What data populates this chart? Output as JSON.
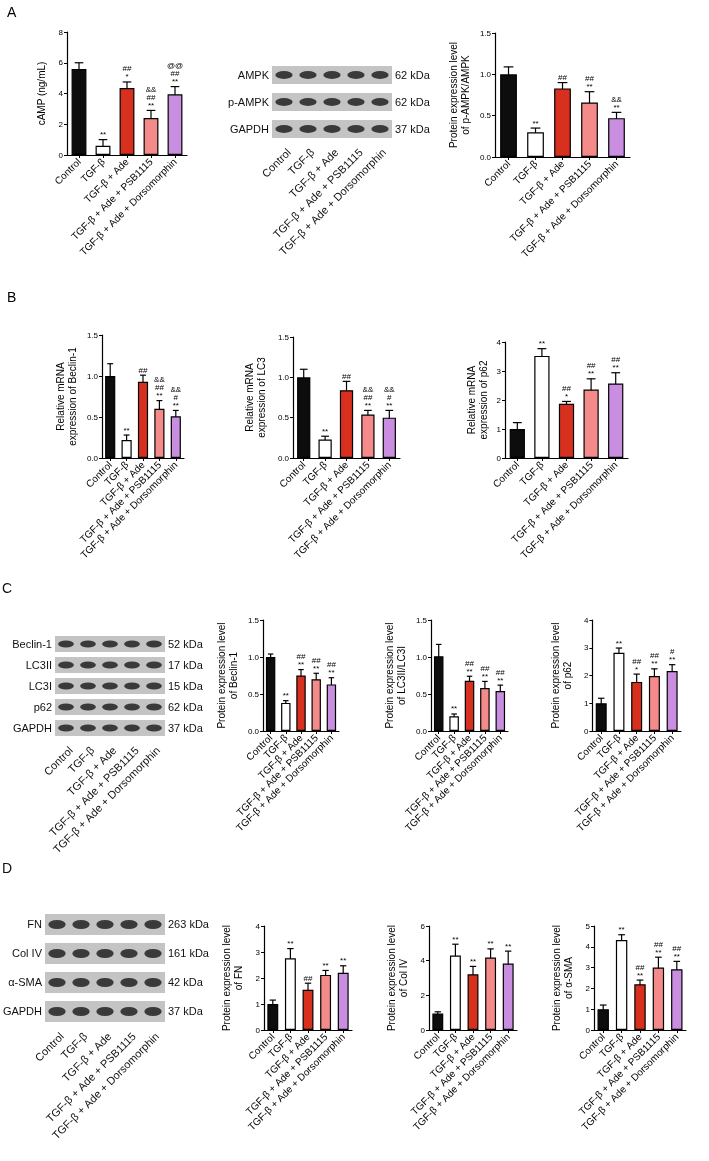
{
  "chart_data": [
    {
      "type": "bar",
      "title": "A",
      "ylabel": "cAMP (ng/mL)",
      "categories": [
        "Control",
        "TGF-β",
        "TGF-β + Ade",
        "TGF-β + Ade + PSB1115",
        "TGF-β + Ade + Dorsomorphin"
      ],
      "values": [
        5.6,
        0.6,
        4.35,
        2.4,
        3.95
      ],
      "errors": [
        0.4,
        0.4,
        0.4,
        0.5,
        0.5
      ],
      "colors": [
        "#0d0d0d",
        "#ffffff",
        "#d8301f",
        "#f58a8a",
        "#c98ee0"
      ],
      "ylim": [
        0,
        8
      ],
      "yticks": [
        0,
        2,
        4,
        6,
        8
      ],
      "annotations": [
        {
          "text": "**",
          "x": "TGF-β",
          "y": 1.0
        },
        {
          "text": "##\n*",
          "x": "TGF-β + Ade",
          "y": 4.75
        },
        {
          "text": "&&\n##\n**",
          "x": "TGF-β + Ade + PSB1115",
          "y": 2.9
        },
        {
          "text": "@@\n##\n**",
          "x": "TGF-β + Ade + Dorsomorphin",
          "y": 4.45
        }
      ]
    },
    {
      "type": "other",
      "categories": [
        "Control",
        "TGF-β",
        "TGF-β + Ade",
        "TGF-β + Ade + PSB1115",
        "TGF-β + Ade + Dorsomorphin"
      ],
      "y_categories": [
        "AMPK",
        "p-AMPK",
        "GAPDH"
      ],
      "y2_categories": [
        "62 kDa",
        "62 kDa",
        "37 kDa"
      ]
    },
    {
      "type": "bar",
      "ylabel": "Protein expression level\nof p-AMPK/AMPK",
      "categories": [
        "Control",
        "TGF-β",
        "TGF-β + Ade",
        "TGF-β + Ade + PSB1115",
        "TGF-β + Ade + Dorsomorphin"
      ],
      "values": [
        1.0,
        0.3,
        0.83,
        0.66,
        0.47
      ],
      "errors": [
        0.09,
        0.05,
        0.07,
        0.13,
        0.07
      ],
      "colors": [
        "#0d0d0d",
        "#ffffff",
        "#d8301f",
        "#f58a8a",
        "#c98ee0"
      ],
      "ylim": [
        0,
        1.5
      ],
      "yticks": [
        {
          "value": 0,
          "label": "0.0"
        },
        {
          "value": 0.5,
          "label": "0.5"
        },
        {
          "value": 1,
          "label": "1.0"
        },
        {
          "value": 1.5,
          "label": "1.5"
        }
      ],
      "annotations": [
        {
          "text": "**",
          "x": "TGF-β",
          "y": 0.35
        },
        {
          "text": "##",
          "x": "TGF-β + Ade",
          "y": 0.9
        },
        {
          "text": "##\n**",
          "x": "TGF-β + Ade + PSB1115",
          "y": 0.79
        },
        {
          "text": "&&\n**",
          "x": "TGF-β + Ade + Dorsomorphin",
          "y": 0.54
        }
      ]
    },
    {
      "type": "bar",
      "title": "B",
      "ylabel": "Relative mRNA\nexpression of Beclin-1",
      "categories": [
        "Control",
        "TGF-β",
        "TGF-β + Ade",
        "TGF-β + Ade + PSB1115",
        "TGF-β + Ade + Dorsomorphin"
      ],
      "values": [
        1.0,
        0.22,
        0.93,
        0.6,
        0.51
      ],
      "errors": [
        0.15,
        0.06,
        0.08,
        0.1,
        0.07
      ],
      "colors": [
        "#0d0d0d",
        "#ffffff",
        "#d8301f",
        "#f58a8a",
        "#c98ee0"
      ],
      "ylim": [
        0,
        1.5
      ],
      "yticks": [
        {
          "value": 0,
          "label": "0.0"
        },
        {
          "value": 0.5,
          "label": "0.5"
        },
        {
          "value": 1,
          "label": "1.0"
        },
        {
          "value": 1.5,
          "label": "1.5"
        }
      ],
      "annotations": [
        {
          "text": "**",
          "x": "TGF-β",
          "y": 0.28
        },
        {
          "text": "##",
          "x": "TGF-β + Ade",
          "y": 1.01
        },
        {
          "text": "&&\n##\n**",
          "x": "TGF-β + Ade + PSB1115",
          "y": 0.7
        },
        {
          "text": "&&\n#\n**",
          "x": "TGF-β + Ade + Dorsomorphin",
          "y": 0.58
        }
      ]
    },
    {
      "type": "bar",
      "ylabel": "Relative mRNA\nexpression of LC3",
      "categories": [
        "Control",
        "TGF-β",
        "TGF-β + Ade",
        "TGF-β + Ade + PSB1115",
        "TGF-β + Ade + Dorsomorphin"
      ],
      "values": [
        1.0,
        0.23,
        0.84,
        0.54,
        0.5
      ],
      "errors": [
        0.1,
        0.04,
        0.11,
        0.05,
        0.09
      ],
      "colors": [
        "#0d0d0d",
        "#ffffff",
        "#d8301f",
        "#f58a8a",
        "#c98ee0"
      ],
      "ylim": [
        0,
        1.5
      ],
      "yticks": [
        {
          "value": 0,
          "label": "0.0"
        },
        {
          "value": 0.5,
          "label": "0.5"
        },
        {
          "value": 1,
          "label": "1.0"
        },
        {
          "value": 1.5,
          "label": "1.5"
        }
      ],
      "annotations": [
        {
          "text": "**",
          "x": "TGF-β",
          "y": 0.27
        },
        {
          "text": "##",
          "x": "TGF-β + Ade",
          "y": 0.95
        },
        {
          "text": "&&\n##\n**",
          "x": "TGF-β + Ade + PSB1115",
          "y": 0.59
        },
        {
          "text": "&&\n#\n**",
          "x": "TGF-β + Ade + Dorsomorphin",
          "y": 0.59
        }
      ]
    },
    {
      "type": "bar",
      "ylabel": "Relative mRNA\nexpression of p62",
      "categories": [
        "Control",
        "TGF-β",
        "TGF-β + Ade",
        "TGF-β + Ade + PSB1115",
        "TGF-β + Ade + Dorsomorphin"
      ],
      "values": [
        1.0,
        3.52,
        1.87,
        2.36,
        2.57
      ],
      "errors": [
        0.22,
        0.25,
        0.08,
        0.37,
        0.37
      ],
      "colors": [
        "#0d0d0d",
        "#ffffff",
        "#d8301f",
        "#f58a8a",
        "#c98ee0"
      ],
      "ylim": [
        0,
        4
      ],
      "yticks": [
        0,
        1,
        2,
        3,
        4
      ],
      "annotations": [
        {
          "text": "**",
          "x": "TGF-β",
          "y": 3.77
        },
        {
          "text": "##\n*",
          "x": "TGF-β + Ade",
          "y": 1.95
        },
        {
          "text": "##\n**",
          "x": "TGF-β + Ade + PSB1115",
          "y": 2.73
        },
        {
          "text": "##\n**",
          "x": "TGF-β + Ade + Dorsomorphin",
          "y": 2.94
        }
      ]
    },
    {
      "type": "other",
      "title": "C",
      "categories": [
        "Control",
        "TGF-β",
        "TGF-β + Ade",
        "TGF-β + Ade + PSB1115",
        "TGF-β + Ade + Dorsomorphin"
      ],
      "y_categories": [
        "Beclin-1",
        "LC3II",
        "LC3I",
        "p62",
        "GAPDH"
      ],
      "y2_categories": [
        "52 kDa",
        "17 kDa",
        "15 kDa",
        "62 kDa",
        "37 kDa"
      ]
    },
    {
      "type": "bar",
      "ylabel": "Protein expression level\nof Beclin-1",
      "categories": [
        "Control",
        "TGF-β",
        "TGF-β + Ade",
        "TGF-β + Ade + PSB1115",
        "TGF-β + Ade + Dorsomorphin"
      ],
      "values": [
        1.0,
        0.38,
        0.75,
        0.7,
        0.63
      ],
      "errors": [
        0.04,
        0.03,
        0.08,
        0.08,
        0.09
      ],
      "colors": [
        "#0d0d0d",
        "#ffffff",
        "#d8301f",
        "#f58a8a",
        "#c98ee0"
      ],
      "ylim": [
        0,
        1.5
      ],
      "yticks": [
        {
          "value": 0,
          "label": "0.0"
        },
        {
          "value": 0.5,
          "label": "0.5"
        },
        {
          "value": 1,
          "label": "1.0"
        },
        {
          "value": 1.5,
          "label": "1.5"
        }
      ],
      "annotations": [
        {
          "text": "**",
          "x": "TGF-β",
          "y": 0.41
        },
        {
          "text": "##\n**",
          "x": "TGF-β + Ade",
          "y": 0.83
        },
        {
          "text": "##\n**",
          "x": "TGF-β + Ade + PSB1115",
          "y": 0.78
        },
        {
          "text": "##\n**",
          "x": "TGF-β + Ade + Dorsomorphin",
          "y": 0.72
        }
      ]
    },
    {
      "type": "bar",
      "ylabel": "Protein expression level\nof LC3II/LC3I",
      "categories": [
        "Control",
        "TGF-β",
        "TGF-β + Ade",
        "TGF-β + Ade + PSB1115",
        "TGF-β + Ade + Dorsomorphin"
      ],
      "values": [
        1.01,
        0.2,
        0.68,
        0.58,
        0.54
      ],
      "errors": [
        0.16,
        0.03,
        0.06,
        0.09,
        0.08
      ],
      "colors": [
        "#0d0d0d",
        "#ffffff",
        "#d8301f",
        "#f58a8a",
        "#c98ee0"
      ],
      "ylim": [
        0,
        1.5
      ],
      "yticks": [
        {
          "value": 0,
          "label": "0.0"
        },
        {
          "value": 0.5,
          "label": "0.5"
        },
        {
          "value": 1,
          "label": "1.0"
        },
        {
          "value": 1.5,
          "label": "1.5"
        }
      ],
      "annotations": [
        {
          "text": "**",
          "x": "TGF-β",
          "y": 0.23
        },
        {
          "text": "##\n**",
          "x": "TGF-β + Ade",
          "y": 0.74
        },
        {
          "text": "##\n**",
          "x": "TGF-β + Ade + PSB1115",
          "y": 0.67
        },
        {
          "text": "##\n**",
          "x": "TGF-β + Ade + Dorsomorphin",
          "y": 0.62
        }
      ]
    },
    {
      "type": "bar",
      "ylabel": "Protein expression level\nof p62",
      "categories": [
        "Control",
        "TGF-β",
        "TGF-β + Ade",
        "TGF-β + Ade + PSB1115",
        "TGF-β + Ade + Dorsomorphin"
      ],
      "values": [
        1.0,
        2.82,
        1.77,
        1.98,
        2.16
      ],
      "errors": [
        0.18,
        0.17,
        0.28,
        0.26,
        0.23
      ],
      "colors": [
        "#0d0d0d",
        "#ffffff",
        "#d8301f",
        "#f58a8a",
        "#c98ee0"
      ],
      "ylim": [
        0,
        4
      ],
      "yticks": [
        0,
        1,
        2,
        3,
        4
      ],
      "annotations": [
        {
          "text": "**",
          "x": "TGF-β",
          "y": 2.99
        },
        {
          "text": "##\n*",
          "x": "TGF-β + Ade",
          "y": 2.05
        },
        {
          "text": "##\n**",
          "x": "TGF-β + Ade + PSB1115",
          "y": 2.24
        },
        {
          "text": "#\n**",
          "x": "TGF-β + Ade + Dorsomorphin",
          "y": 2.39
        }
      ]
    },
    {
      "type": "other",
      "title": "D",
      "categories": [
        "Control",
        "TGF-β",
        "TGF-β + Ade",
        "TGF-β + Ade + PSB1115",
        "TGF-β + Ade + Dorsomorphin"
      ],
      "y_categories": [
        "FN",
        "Col IV",
        "α-SMA",
        "GAPDH"
      ],
      "y2_categories": [
        "263 kDa",
        "161 kDa",
        "42 kDa",
        "37 kDa"
      ]
    },
    {
      "type": "bar",
      "ylabel": "Protein expression level\nof FN",
      "categories": [
        "Control",
        "TGF-β",
        "TGF-β + Ade",
        "TGF-β + Ade + PSB1115",
        "TGF-β + Ade + Dorsomorphin"
      ],
      "values": [
        1.0,
        2.76,
        1.55,
        2.12,
        2.2
      ],
      "errors": [
        0.15,
        0.37,
        0.25,
        0.17,
        0.27
      ],
      "colors": [
        "#0d0d0d",
        "#ffffff",
        "#d8301f",
        "#f58a8a",
        "#c98ee0"
      ],
      "ylim": [
        0,
        4
      ],
      "yticks": [
        0,
        1,
        2,
        3,
        4
      ],
      "annotations": [
        {
          "text": "**",
          "x": "TGF-β",
          "y": 3.13
        },
        {
          "text": "##",
          "x": "TGF-β + Ade",
          "y": 1.8
        },
        {
          "text": "**",
          "x": "TGF-β + Ade + PSB1115",
          "y": 2.29
        },
        {
          "text": "**",
          "x": "TGF-β + Ade + Dorsomorphin",
          "y": 2.47
        }
      ]
    },
    {
      "type": "bar",
      "ylabel": "Protein expression level\nof Col IV",
      "categories": [
        "Control",
        "TGF-β",
        "TGF-β + Ade",
        "TGF-β + Ade + PSB1115",
        "TGF-β + Ade + Dorsomorphin"
      ],
      "values": [
        0.95,
        4.3,
        3.22,
        4.18,
        3.83
      ],
      "errors": [
        0.1,
        0.65,
        0.45,
        0.5,
        0.72
      ],
      "colors": [
        "#0d0d0d",
        "#ffffff",
        "#d8301f",
        "#f58a8a",
        "#c98ee0"
      ],
      "ylim": [
        0,
        6
      ],
      "yticks": [
        0,
        2,
        4,
        6
      ],
      "annotations": [
        {
          "text": "**",
          "x": "TGF-β",
          "y": 4.95
        },
        {
          "text": "**",
          "x": "TGF-β + Ade",
          "y": 3.67
        },
        {
          "text": "**",
          "x": "TGF-β + Ade + PSB1115",
          "y": 4.68
        },
        {
          "text": "**",
          "x": "TGF-β + Ade + Dorsomorphin",
          "y": 4.55
        }
      ]
    },
    {
      "type": "bar",
      "ylabel": "Protein expression level\nof α-SMA",
      "categories": [
        "Control",
        "TGF-β",
        "TGF-β + Ade",
        "TGF-β + Ade + PSB1115",
        "TGF-β + Ade + Dorsomorphin"
      ],
      "values": [
        1.0,
        4.33,
        2.2,
        3.0,
        2.92
      ],
      "errors": [
        0.2,
        0.25,
        0.2,
        0.5,
        0.38
      ],
      "colors": [
        "#0d0d0d",
        "#ffffff",
        "#d8301f",
        "#f58a8a",
        "#c98ee0"
      ],
      "ylim": [
        0,
        5
      ],
      "yticks": [
        0,
        1,
        2,
        3,
        4,
        5
      ],
      "annotations": [
        {
          "text": "**",
          "x": "TGF-β",
          "y": 4.58
        },
        {
          "text": "##\n**",
          "x": "TGF-β + Ade",
          "y": 2.4
        },
        {
          "text": "##\n**",
          "x": "TGF-β + Ade + PSB1115",
          "y": 3.5
        },
        {
          "text": "##\n**",
          "x": "TGF-β + Ade + Dorsomorphin",
          "y": 3.3
        }
      ]
    }
  ]
}
